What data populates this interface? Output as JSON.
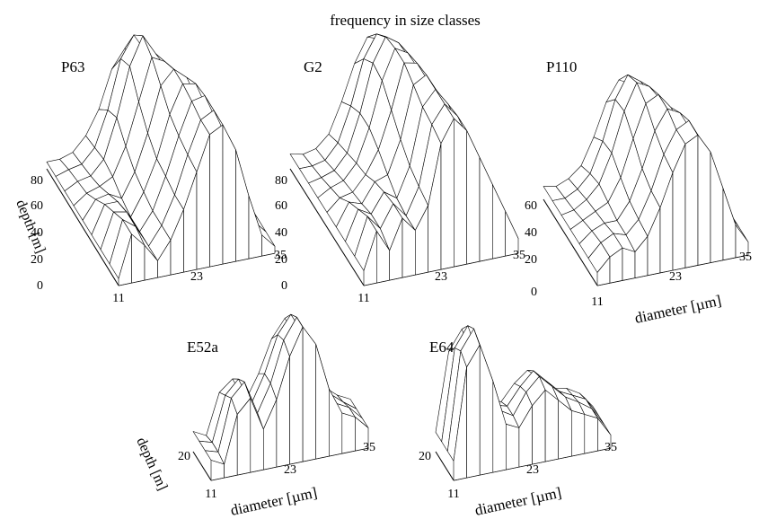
{
  "figure": {
    "title": "frequency in size classes"
  },
  "chart_data": [
    {
      "type": "surface",
      "panel": "P63",
      "title": "P63",
      "xlabel": "",
      "ylabel": "depth [m]",
      "x_ticks": [
        "11",
        "23",
        "35"
      ],
      "y_ticks": [
        "0",
        "20",
        "40",
        "60",
        "80"
      ],
      "xlim": [
        11,
        35
      ],
      "ylim": [
        0,
        80
      ],
      "diameter": [
        11,
        13,
        15,
        17,
        19,
        21,
        23,
        25,
        27,
        29,
        31,
        33,
        35
      ],
      "depth": [
        0,
        10,
        20,
        30,
        40,
        50,
        60,
        70,
        80
      ],
      "frequency": [
        [
          0.05,
          0.35,
          0.25,
          0.12,
          0.25,
          0.45,
          0.7,
          0.95,
          1.0,
          0.8,
          0.45,
          0.15,
          0.05
        ],
        [
          0.05,
          0.35,
          0.28,
          0.12,
          0.25,
          0.45,
          0.72,
          0.95,
          1.0,
          0.78,
          0.45,
          0.15,
          0.05
        ],
        [
          0.05,
          0.3,
          0.28,
          0.12,
          0.25,
          0.48,
          0.75,
          0.98,
          1.0,
          0.78,
          0.45,
          0.15,
          0.05
        ],
        [
          0.05,
          0.25,
          0.25,
          0.12,
          0.28,
          0.5,
          0.8,
          1.0,
          0.98,
          0.75,
          0.42,
          0.15,
          0.05
        ],
        [
          0.05,
          0.18,
          0.2,
          0.15,
          0.32,
          0.58,
          0.9,
          1.0,
          0.92,
          0.7,
          0.4,
          0.15,
          0.05
        ],
        [
          0.05,
          0.12,
          0.15,
          0.2,
          0.4,
          0.7,
          1.0,
          0.95,
          0.85,
          0.62,
          0.35,
          0.15,
          0.05
        ],
        [
          0.05,
          0.1,
          0.12,
          0.22,
          0.5,
          0.85,
          1.05,
          0.9,
          0.75,
          0.55,
          0.3,
          0.12,
          0.05
        ],
        [
          0.05,
          0.08,
          0.1,
          0.2,
          0.45,
          0.8,
          0.95,
          0.8,
          0.62,
          0.45,
          0.25,
          0.1,
          0.05
        ],
        [
          0.05,
          0.05,
          0.08,
          0.18,
          0.35,
          0.62,
          0.75,
          0.62,
          0.48,
          0.35,
          0.2,
          0.08,
          0.05
        ]
      ]
    },
    {
      "type": "surface",
      "panel": "G2",
      "title": "G2",
      "xlabel": "",
      "ylabel": "",
      "x_ticks": [
        "11",
        "23",
        "35"
      ],
      "y_ticks": [
        "0",
        "20",
        "40",
        "60",
        "80"
      ],
      "xlim": [
        11,
        35
      ],
      "ylim": [
        0,
        80
      ],
      "diameter": [
        11,
        13,
        15,
        17,
        19,
        21,
        23,
        25,
        27,
        29,
        31,
        33,
        35
      ],
      "depth": [
        0,
        10,
        20,
        30,
        40,
        50,
        60,
        70,
        80
      ],
      "frequency": [
        [
          0.1,
          0.35,
          0.2,
          0.4,
          0.3,
          0.45,
          0.85,
          1.0,
          0.9,
          0.7,
          0.5,
          0.3,
          0.1
        ],
        [
          0.1,
          0.35,
          0.25,
          0.4,
          0.3,
          0.48,
          0.88,
          1.0,
          0.9,
          0.7,
          0.5,
          0.3,
          0.1
        ],
        [
          0.1,
          0.3,
          0.25,
          0.38,
          0.32,
          0.52,
          0.9,
          1.0,
          0.88,
          0.68,
          0.48,
          0.28,
          0.1
        ],
        [
          0.1,
          0.25,
          0.22,
          0.35,
          0.38,
          0.6,
          0.95,
          1.0,
          0.85,
          0.65,
          0.45,
          0.28,
          0.1
        ],
        [
          0.1,
          0.18,
          0.2,
          0.3,
          0.45,
          0.7,
          1.0,
          0.98,
          0.82,
          0.62,
          0.45,
          0.25,
          0.1
        ],
        [
          0.1,
          0.15,
          0.18,
          0.28,
          0.5,
          0.8,
          1.0,
          0.95,
          0.8,
          0.6,
          0.42,
          0.25,
          0.1
        ],
        [
          0.1,
          0.12,
          0.15,
          0.25,
          0.5,
          0.82,
          0.98,
          0.92,
          0.78,
          0.58,
          0.4,
          0.22,
          0.1
        ],
        [
          0.1,
          0.1,
          0.12,
          0.22,
          0.45,
          0.75,
          0.9,
          0.85,
          0.72,
          0.55,
          0.38,
          0.2,
          0.1
        ],
        [
          0.1,
          0.08,
          0.1,
          0.18,
          0.38,
          0.62,
          0.78,
          0.75,
          0.62,
          0.48,
          0.32,
          0.18,
          0.1
        ]
      ]
    },
    {
      "type": "surface",
      "panel": "P110",
      "title": "P110",
      "xlabel": "diameter [µm]",
      "ylabel": "",
      "x_ticks": [
        "11",
        "23",
        "35"
      ],
      "y_ticks": [
        "0",
        "20",
        "40",
        "60"
      ],
      "xlim": [
        11,
        35
      ],
      "ylim": [
        0,
        60
      ],
      "diameter": [
        11,
        13,
        15,
        17,
        19,
        21,
        23,
        25,
        27,
        29,
        31,
        33,
        35
      ],
      "depth": [
        0,
        10,
        20,
        30,
        40,
        50,
        60
      ],
      "frequency": [
        [
          0.1,
          0.2,
          0.25,
          0.2,
          0.3,
          0.5,
          0.75,
          0.95,
          1.0,
          0.85,
          0.55,
          0.25,
          0.1
        ],
        [
          0.1,
          0.2,
          0.25,
          0.22,
          0.32,
          0.52,
          0.78,
          0.95,
          1.0,
          0.82,
          0.55,
          0.25,
          0.1
        ],
        [
          0.1,
          0.18,
          0.22,
          0.22,
          0.35,
          0.58,
          0.85,
          1.0,
          0.95,
          0.78,
          0.5,
          0.25,
          0.1
        ],
        [
          0.1,
          0.15,
          0.2,
          0.25,
          0.42,
          0.7,
          0.95,
          1.0,
          0.88,
          0.7,
          0.45,
          0.22,
          0.1
        ],
        [
          0.1,
          0.12,
          0.18,
          0.28,
          0.5,
          0.8,
          1.0,
          0.95,
          0.82,
          0.62,
          0.4,
          0.2,
          0.1
        ],
        [
          0.1,
          0.1,
          0.15,
          0.25,
          0.48,
          0.78,
          0.95,
          0.88,
          0.75,
          0.55,
          0.35,
          0.18,
          0.1
        ],
        [
          0.1,
          0.08,
          0.12,
          0.2,
          0.4,
          0.65,
          0.8,
          0.75,
          0.62,
          0.45,
          0.3,
          0.15,
          0.1
        ]
      ]
    },
    {
      "type": "surface",
      "panel": "E52a",
      "title": "E52a",
      "xlabel": "diameter [µm]",
      "ylabel": "depth [m]",
      "x_ticks": [
        "11",
        "23",
        "35"
      ],
      "y_ticks": [
        "20"
      ],
      "xlim": [
        11,
        35
      ],
      "ylim": [
        0,
        30
      ],
      "diameter": [
        11,
        13,
        15,
        17,
        19,
        21,
        23,
        25,
        27,
        29,
        31,
        33,
        35
      ],
      "depth": [
        0,
        10,
        20,
        30
      ],
      "frequency": [
        [
          0.15,
          0.1,
          0.45,
          0.55,
          0.3,
          0.5,
          0.8,
          1.0,
          0.85,
          0.5,
          0.3,
          0.25,
          0.15
        ],
        [
          0.15,
          0.12,
          0.5,
          0.6,
          0.35,
          0.55,
          0.85,
          1.0,
          0.82,
          0.48,
          0.3,
          0.25,
          0.15
        ],
        [
          0.15,
          0.12,
          0.45,
          0.55,
          0.35,
          0.55,
          0.82,
          0.95,
          0.78,
          0.45,
          0.3,
          0.22,
          0.15
        ],
        [
          0.15,
          0.1,
          0.4,
          0.48,
          0.3,
          0.48,
          0.72,
          0.85,
          0.68,
          0.4,
          0.28,
          0.2,
          0.15
        ]
      ]
    },
    {
      "type": "surface",
      "panel": "E64",
      "title": "E64",
      "xlabel": "diameter [µm]",
      "ylabel": "",
      "x_ticks": [
        "11",
        "23",
        "35"
      ],
      "y_ticks": [
        "20"
      ],
      "xlim": [
        11,
        35
      ],
      "ylim": [
        0,
        30
      ],
      "diameter": [
        11,
        13,
        15,
        17,
        19,
        21,
        23,
        25,
        27,
        29,
        31,
        33,
        35
      ],
      "depth": [
        0,
        10,
        20,
        30
      ],
      "frequency": [
        [
          0.15,
          0.85,
          1.0,
          0.7,
          0.35,
          0.3,
          0.45,
          0.55,
          0.45,
          0.35,
          0.3,
          0.25,
          0.1
        ],
        [
          0.15,
          0.9,
          1.05,
          0.75,
          0.38,
          0.32,
          0.48,
          0.58,
          0.48,
          0.38,
          0.32,
          0.25,
          0.1
        ],
        [
          0.15,
          0.85,
          1.0,
          0.7,
          0.35,
          0.32,
          0.45,
          0.55,
          0.45,
          0.35,
          0.3,
          0.25,
          0.1
        ],
        [
          0.15,
          0.75,
          0.9,
          0.62,
          0.32,
          0.28,
          0.4,
          0.48,
          0.4,
          0.3,
          0.28,
          0.22,
          0.1
        ]
      ]
    }
  ]
}
